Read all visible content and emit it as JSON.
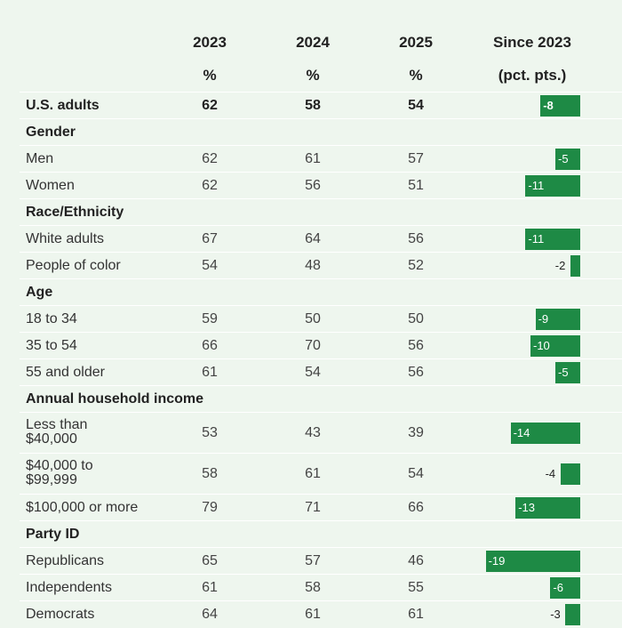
{
  "header": {
    "col_2023": "2023",
    "col_2024": "2024",
    "col_2025": "2025",
    "col_since": "Since 2023",
    "unit_2023": "%",
    "unit_2024": "%",
    "unit_2025": "%",
    "unit_since": "(pct. pts.)"
  },
  "colors": {
    "bar": "#1e8a45",
    "background": "#eef6ee"
  },
  "chart_data": {
    "type": "table",
    "columns": [
      "2023",
      "2024",
      "2025",
      "Since 2023"
    ],
    "rows": [
      {
        "kind": "total",
        "label": "U.S. adults",
        "v2023": "62",
        "v2024": "58",
        "v2025": "54",
        "change": -8
      },
      {
        "kind": "section",
        "label": "Gender"
      },
      {
        "kind": "data",
        "label": "Men",
        "v2023": "62",
        "v2024": "61",
        "v2025": "57",
        "change": -5
      },
      {
        "kind": "data",
        "label": "Women",
        "v2023": "62",
        "v2024": "56",
        "v2025": "51",
        "change": -11
      },
      {
        "kind": "section",
        "label": "Race/Ethnicity"
      },
      {
        "kind": "data",
        "label": "White adults",
        "v2023": "67",
        "v2024": "64",
        "v2025": "56",
        "change": -11
      },
      {
        "kind": "data",
        "label": "People of color",
        "v2023": "54",
        "v2024": "48",
        "v2025": "52",
        "change": -2
      },
      {
        "kind": "section",
        "label": "Age"
      },
      {
        "kind": "data",
        "label": "18 to 34",
        "v2023": "59",
        "v2024": "50",
        "v2025": "50",
        "change": -9
      },
      {
        "kind": "data",
        "label": "35 to 54",
        "v2023": "66",
        "v2024": "70",
        "v2025": "56",
        "change": -10
      },
      {
        "kind": "data",
        "label": "55 and older",
        "v2023": "61",
        "v2024": "54",
        "v2025": "56",
        "change": -5
      },
      {
        "kind": "section",
        "label": "Annual household income"
      },
      {
        "kind": "data",
        "label": "Less than\n$40,000",
        "v2023": "53",
        "v2024": "43",
        "v2025": "39",
        "change": -14
      },
      {
        "kind": "data",
        "label": "$40,000 to\n$99,999",
        "v2023": "58",
        "v2024": "61",
        "v2025": "54",
        "change": -4
      },
      {
        "kind": "data",
        "label": "$100,000 or more",
        "v2023": "79",
        "v2024": "71",
        "v2025": "66",
        "change": -13
      },
      {
        "kind": "section",
        "label": "Party ID"
      },
      {
        "kind": "data",
        "label": "Republicans",
        "v2023": "65",
        "v2024": "57",
        "v2025": "46",
        "change": -19
      },
      {
        "kind": "data",
        "label": "Independents",
        "v2023": "61",
        "v2024": "58",
        "v2025": "55",
        "change": -6
      },
      {
        "kind": "data",
        "label": "Democrats",
        "v2023": "64",
        "v2024": "61",
        "v2025": "61",
        "change": -3
      }
    ]
  }
}
